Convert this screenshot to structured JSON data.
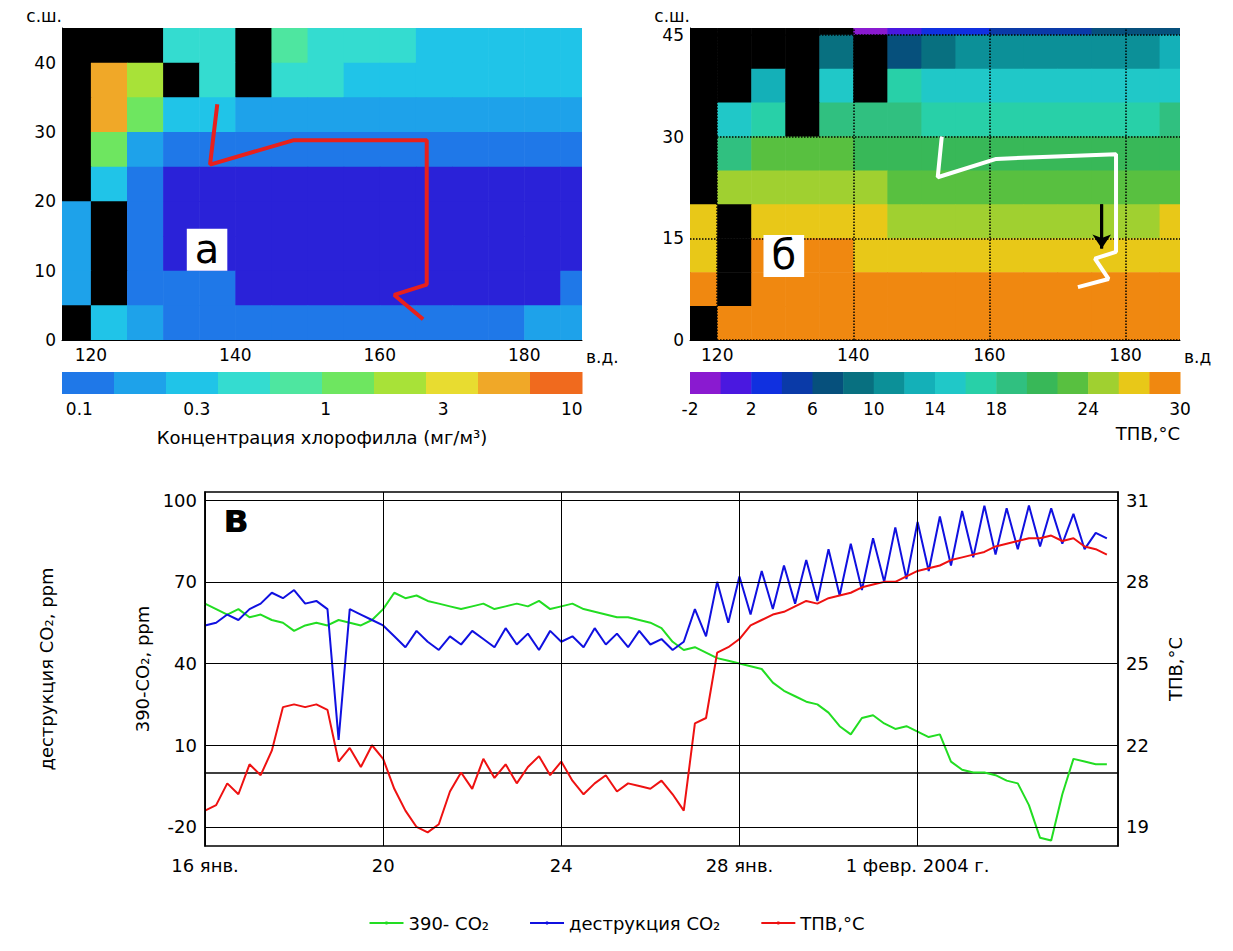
{
  "chart_data": [
    {
      "type": "heatmap",
      "panel": "а",
      "x": [
        117.5,
        122.5,
        127.5,
        132.5,
        137.5,
        142.5,
        147.5,
        152.5,
        157.5,
        162.5,
        167.5,
        172.5,
        177.5,
        182.5,
        187.5
      ],
      "y": [
        42.5,
        37.5,
        32.5,
        27.5,
        22.5,
        17.5,
        12.5,
        7.5,
        2.5
      ],
      "cells": [
        [
          null,
          null,
          null,
          0.5,
          0.45,
          null,
          0.6,
          0.5,
          0.4,
          0.4,
          0.35,
          0.35,
          0.3,
          0.3,
          0.3
        ],
        [
          null,
          5,
          2,
          null,
          0.5,
          null,
          0.5,
          0.4,
          0.35,
          0.3,
          0.3,
          0.25,
          0.25,
          0.25,
          0.25
        ],
        [
          null,
          5,
          1,
          0.3,
          0.25,
          0.2,
          0.2,
          0.18,
          0.18,
          0.17,
          0.16,
          0.16,
          0.15,
          0.15,
          0.15
        ],
        [
          null,
          1,
          0.15,
          0.12,
          0.12,
          0.1,
          0.1,
          0.1,
          0.1,
          0.1,
          0.1,
          0.1,
          0.1,
          0.1,
          0.1
        ],
        [
          null,
          0.3,
          0.1,
          0.08,
          0.07,
          0.07,
          0.06,
          0.06,
          0.06,
          0.06,
          0.06,
          0.06,
          0.06,
          0.06,
          0.06
        ],
        [
          0.2,
          null,
          0.1,
          0.07,
          0.06,
          0.05,
          0.05,
          0.05,
          0.05,
          0.05,
          0.05,
          0.05,
          0.05,
          0.05,
          0.05
        ],
        [
          0.15,
          null,
          0.1,
          0.08,
          0.07,
          0.06,
          0.05,
          0.05,
          0.05,
          0.05,
          0.05,
          0.06,
          0.06,
          0.06,
          0.06
        ],
        [
          0.2,
          null,
          0.12,
          0.1,
          0.09,
          0.08,
          0.08,
          0.07,
          0.07,
          0.07,
          0.07,
          0.08,
          0.08,
          0.08,
          0.09
        ],
        [
          null,
          0.3,
          0.15,
          0.12,
          0.12,
          0.12,
          0.11,
          0.11,
          0.11,
          0.12,
          0.12,
          0.13,
          0.13,
          0.14,
          0.15
        ]
      ],
      "xlim": [
        116,
        188
      ],
      "ylim": [
        0,
        45
      ],
      "xticks": [
        120,
        140,
        160,
        180
      ],
      "yticks": [
        0,
        10,
        20,
        30,
        40
      ],
      "xlabel": "в.д.",
      "ylabel": "с.ш.",
      "land_color": "#000000",
      "grid": false,
      "track": {
        "x": [
          137.5,
          136.5,
          148,
          166.5,
          166.5,
          162,
          166
        ],
        "y": [
          34,
          25.3,
          28.8,
          28.8,
          8,
          6.5,
          3
        ],
        "color": "#e8201c"
      },
      "colorbar": {
        "label": "Концентрация хлорофилла (мг/м³)",
        "log": true,
        "range": [
          0.085,
          11
        ],
        "ticks": [
          0.1,
          0.3,
          1,
          3,
          10
        ],
        "colors": [
          "#1f78e8",
          "#1ea2ea",
          "#20c4e8",
          "#34dcd0",
          "#4ee6a0",
          "#6ee660",
          "#a8e238",
          "#e8dc30",
          "#f0a828",
          "#f06a1e"
        ],
        "under_color": "#2a22d8"
      }
    },
    {
      "type": "heatmap",
      "panel": "б",
      "x": [
        117.5,
        122.5,
        127.5,
        132.5,
        137.5,
        142.5,
        147.5,
        152.5,
        157.5,
        162.5,
        167.5,
        172.5,
        177.5,
        182.5,
        187.5
      ],
      "y": [
        47.5,
        42.5,
        37.5,
        32.5,
        27.5,
        22.5,
        17.5,
        12.5,
        7.5,
        2.5
      ],
      "cells": [
        [
          null,
          null,
          null,
          null,
          null,
          -1,
          0,
          2,
          3,
          4,
          5,
          5,
          6,
          6,
          7
        ],
        [
          null,
          null,
          null,
          null,
          8,
          null,
          6,
          8,
          10,
          11,
          11,
          11,
          11,
          11,
          12
        ],
        [
          null,
          null,
          12,
          null,
          14,
          null,
          16,
          15,
          14,
          14,
          14,
          15,
          15,
          15,
          15
        ],
        [
          null,
          14,
          17,
          null,
          19,
          19,
          18,
          17,
          17,
          17,
          17,
          17,
          17,
          17,
          18
        ],
        [
          null,
          19,
          22,
          22,
          22,
          21,
          21,
          21,
          20,
          20,
          20,
          20,
          21,
          21,
          21
        ],
        [
          null,
          24,
          24,
          24,
          24,
          24,
          23,
          23,
          23,
          23,
          23,
          23,
          23,
          23,
          23
        ],
        [
          26,
          null,
          26,
          26,
          26,
          26,
          25,
          25,
          25,
          25,
          25,
          25,
          25,
          25,
          26
        ],
        [
          27,
          null,
          28,
          28,
          28,
          27,
          27,
          27,
          27,
          27,
          27,
          27,
          27,
          27,
          27
        ],
        [
          28,
          null,
          29,
          29,
          29,
          29,
          29,
          28,
          28,
          28,
          28,
          28,
          28,
          28,
          28
        ],
        [
          null,
          29,
          29,
          29,
          29,
          29,
          29,
          29,
          29,
          29,
          29,
          29,
          29,
          29,
          29
        ]
      ],
      "xlim": [
        116,
        188
      ],
      "ylim": [
        0,
        46
      ],
      "xticks": [
        120,
        140,
        160,
        180
      ],
      "yticks": [
        0,
        15,
        30,
        45
      ],
      "xlabel": "в.д",
      "ylabel": "с.ш.",
      "land_color": "#000000",
      "grid": true,
      "track": {
        "x": [
          153,
          152.4,
          161,
          178.6,
          178.6,
          175.5,
          177.5,
          173
        ],
        "y": [
          30,
          24,
          26.7,
          27.4,
          13,
          12,
          9,
          7.8
        ],
        "color": "#ffffff"
      },
      "arrow": {
        "x": [
          176.5,
          176.5
        ],
        "y": [
          20,
          13.5
        ],
        "color": "#000000"
      },
      "colorbar": {
        "label": "ТПВ,°C",
        "log": false,
        "range": [
          -2,
          30
        ],
        "ticks": [
          -2,
          2,
          6,
          10,
          14,
          18,
          24,
          30
        ],
        "colors": [
          "#8a1ad0",
          "#4a18e0",
          "#1030e0",
          "#0a3aa8",
          "#06507c",
          "#087080",
          "#0c9098",
          "#14b0b8",
          "#20c8c8",
          "#28d0a8",
          "#30c080",
          "#38b858",
          "#58c040",
          "#a0d030",
          "#e8c818",
          "#f08810"
        ]
      }
    },
    {
      "type": "line",
      "panel": "в",
      "x": [
        16,
        16.25,
        16.5,
        16.75,
        17,
        17.25,
        17.5,
        17.75,
        18,
        18.25,
        18.5,
        18.75,
        19,
        19.25,
        19.5,
        19.75,
        20,
        20.25,
        20.5,
        20.75,
        21,
        21.25,
        21.5,
        21.75,
        22,
        22.25,
        22.5,
        22.75,
        23,
        23.25,
        23.5,
        23.75,
        24,
        24.25,
        24.5,
        24.75,
        25,
        25.25,
        25.5,
        25.75,
        26,
        26.25,
        26.5,
        26.75,
        27,
        27.25,
        27.5,
        27.75,
        28,
        28.25,
        28.5,
        28.75,
        29,
        29.25,
        29.5,
        29.75,
        30,
        30.25,
        30.5,
        30.75,
        31,
        31.25,
        31.5,
        31.75,
        32,
        32.25,
        32.5,
        32.75,
        33,
        33.25,
        33.5,
        33.75,
        34,
        34.25,
        34.5,
        34.75,
        35,
        35.25,
        35.5,
        35.75,
        36,
        36.25
      ],
      "xlim": [
        16,
        36.5
      ],
      "xticks": [
        {
          "value": 16,
          "label": "16 янв."
        },
        20,
        24,
        {
          "value": 28,
          "label": "28 янв."
        },
        {
          "value": 32,
          "label": "1 февр. 2004 г."
        }
      ],
      "ylim": [
        -27,
        103
      ],
      "yticks": [
        -20,
        10,
        40,
        70,
        100
      ],
      "ylabel": "390-CO₂, ppm",
      "ylabel_outer": "деструкция CO₂, ppm",
      "y2lim": [
        18.3,
        31.3
      ],
      "y2ticks": [
        19,
        22,
        25,
        28,
        31
      ],
      "y2label": "ТПВ,°C",
      "grid": true,
      "legend": "bottom",
      "series": [
        {
          "name": "390- CO₂",
          "color": "#22dd22",
          "values": [
            62,
            60,
            58,
            60,
            57,
            58,
            56,
            55,
            52,
            54,
            55,
            54,
            56,
            55,
            54,
            56,
            60,
            66,
            64,
            65,
            63,
            62,
            61,
            60,
            61,
            62,
            60,
            61,
            62,
            61,
            63,
            60,
            61,
            62,
            60,
            59,
            58,
            57,
            57,
            56,
            55,
            53,
            48,
            45,
            46,
            44,
            42,
            41,
            40,
            39,
            38,
            33,
            30,
            28,
            26,
            25,
            22,
            17,
            14,
            20,
            21,
            18,
            16,
            17,
            15,
            13,
            14,
            4,
            1,
            0,
            0,
            -1,
            -3,
            -4,
            -12,
            -24,
            -25,
            -8,
            5,
            4,
            3,
            3
          ]
        },
        {
          "name": "деструкция CO₂",
          "color": "#1010e0",
          "values": [
            54,
            55,
            58,
            56,
            60,
            62,
            66,
            64,
            67,
            62,
            63,
            60,
            12,
            60,
            58,
            56,
            54,
            50,
            46,
            52,
            48,
            45,
            50,
            47,
            52,
            49,
            46,
            53,
            47,
            51,
            45,
            52,
            48,
            50,
            46,
            53,
            47,
            51,
            46,
            52,
            47,
            49,
            45,
            48,
            60,
            50,
            70,
            55,
            72,
            58,
            74,
            60,
            76,
            62,
            78,
            63,
            82,
            65,
            84,
            67,
            86,
            70,
            90,
            71,
            92,
            74,
            94,
            76,
            96,
            79,
            98,
            80,
            97,
            82,
            98,
            83,
            97,
            84,
            95,
            82,
            88,
            86
          ]
        },
        {
          "name": "ТПВ,°C",
          "color": "#ee1111",
          "axis": "y2",
          "values": [
            19.6,
            19.8,
            20.6,
            20.2,
            21.3,
            20.9,
            21.8,
            23.4,
            23.5,
            23.4,
            23.5,
            23.3,
            21.4,
            21.9,
            21.2,
            22.0,
            21.5,
            20.4,
            19.6,
            19.0,
            18.8,
            19.1,
            20.3,
            21.0,
            20.4,
            21.5,
            20.8,
            21.3,
            20.6,
            21.2,
            21.6,
            20.9,
            21.4,
            20.7,
            20.2,
            20.6,
            20.9,
            20.3,
            20.6,
            20.5,
            20.4,
            20.7,
            20.2,
            19.6,
            22.8,
            23.0,
            25.4,
            25.6,
            25.9,
            26.4,
            26.6,
            26.8,
            26.9,
            27.1,
            27.3,
            27.2,
            27.4,
            27.5,
            27.6,
            27.8,
            27.9,
            28.0,
            28.0,
            28.2,
            28.4,
            28.5,
            28.6,
            28.8,
            28.9,
            29.0,
            29.1,
            29.3,
            29.4,
            29.5,
            29.6,
            29.6,
            29.7,
            29.5,
            29.6,
            29.3,
            29.2,
            29.0
          ]
        }
      ]
    }
  ]
}
